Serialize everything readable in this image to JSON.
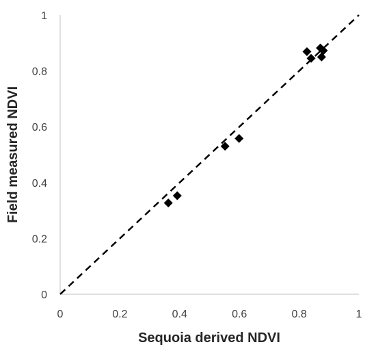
{
  "chart_data": {
    "type": "scatter",
    "title": "",
    "xlabel": "Sequoia derived NDVI",
    "ylabel": "Field measured NDVI",
    "xlim": [
      0,
      1
    ],
    "ylim": [
      0,
      1
    ],
    "x_ticks": [
      "0",
      "0.2",
      "0.4",
      "0.6",
      "0.8",
      "1"
    ],
    "y_ticks": [
      "0",
      "0.2",
      "0.4",
      "0.6",
      "0.8",
      "1"
    ],
    "grid": false,
    "legend": "none",
    "marker": "diamond",
    "marker_color": "#000000",
    "series": [
      {
        "points": [
          {
            "x": 0.362,
            "y": 0.327
          },
          {
            "x": 0.392,
            "y": 0.353
          },
          {
            "x": 0.552,
            "y": 0.53
          },
          {
            "x": 0.599,
            "y": 0.558
          },
          {
            "x": 0.826,
            "y": 0.869
          },
          {
            "x": 0.84,
            "y": 0.845
          },
          {
            "x": 0.871,
            "y": 0.882
          },
          {
            "x": 0.875,
            "y": 0.85
          },
          {
            "x": 0.881,
            "y": 0.873
          }
        ]
      }
    ],
    "reference_line": {
      "style": "dashed",
      "color": "#000000",
      "from": [
        0,
        0
      ],
      "to": [
        1,
        1
      ]
    }
  }
}
